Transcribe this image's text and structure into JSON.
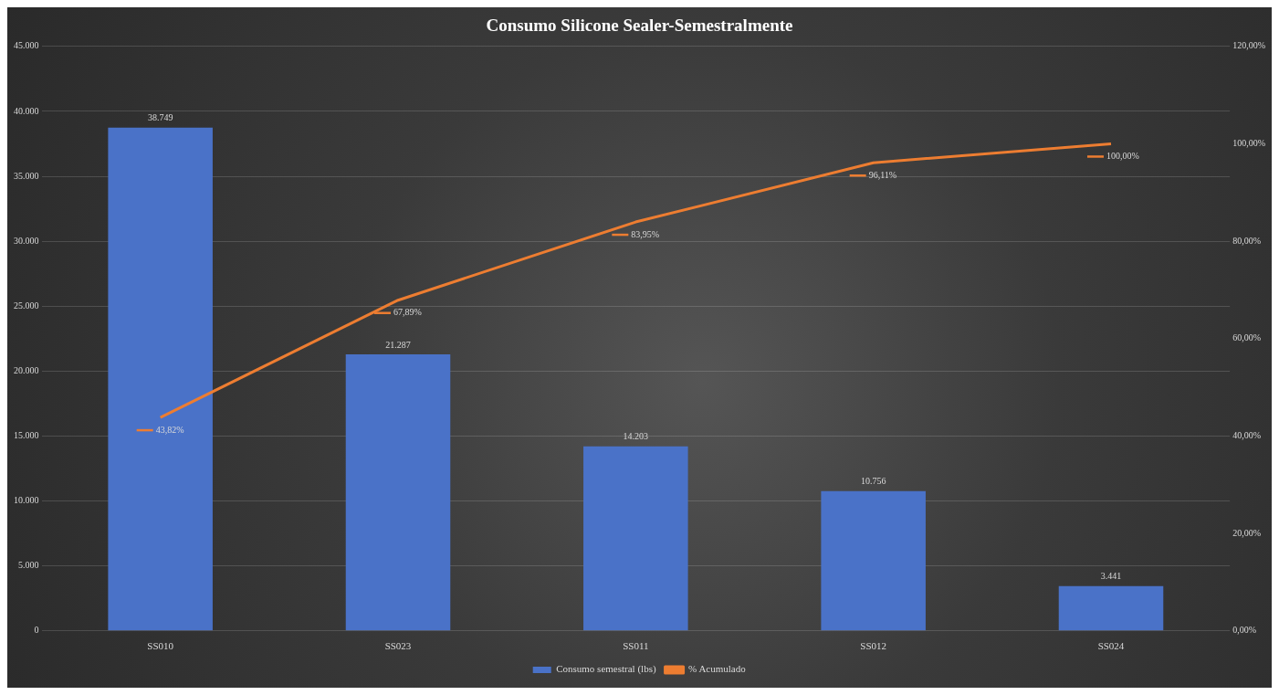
{
  "chart_data": {
    "type": "bar",
    "title": "Consumo Silicone Sealer-Semestralmente",
    "categories": [
      "SS010",
      "SS023",
      "SS011",
      "SS012",
      "SS024"
    ],
    "series": [
      {
        "name": "Consumo semestral (lbs)",
        "color": "#4a72c8",
        "values": [
          38749,
          21287,
          14203,
          10756,
          3441
        ],
        "value_labels": [
          "38.749",
          "21.287",
          "14.203",
          "10.756",
          "3.441"
        ]
      },
      {
        "name": "% Acumulado",
        "type": "line",
        "axis": "y2",
        "color": "#ed7d31",
        "values": [
          43.82,
          67.89,
          83.95,
          96.11,
          100
        ],
        "value_labels": [
          "43,82%",
          "67,89%",
          "83,95%",
          "96,11%",
          "100,00%"
        ]
      }
    ],
    "ylim": [
      0,
      45000
    ],
    "yticks": [
      {
        "value": 0,
        "label": "0"
      },
      {
        "value": 5000,
        "label": "5.000"
      },
      {
        "value": 10000,
        "label": "10.000"
      },
      {
        "value": 15000,
        "label": "15.000"
      },
      {
        "value": 20000,
        "label": "20.000"
      },
      {
        "value": 25000,
        "label": "25.000"
      },
      {
        "value": 30000,
        "label": "30.000"
      },
      {
        "value": 35000,
        "label": "35.000"
      },
      {
        "value": 40000,
        "label": "40.000"
      },
      {
        "value": 45000,
        "label": "45.000"
      }
    ],
    "y2lim": [
      0,
      120
    ],
    "y2ticks": [
      {
        "value": 0,
        "label": "0,00%"
      },
      {
        "value": 20,
        "label": "20,00%"
      },
      {
        "value": 40,
        "label": "40,00%"
      },
      {
        "value": 60,
        "label": "60,00%"
      },
      {
        "value": 80,
        "label": "80,00%"
      },
      {
        "value": 100,
        "label": "100,00%"
      },
      {
        "value": 120,
        "label": "120,00%"
      }
    ],
    "grid": "y",
    "legend": "bottom",
    "marker": "none"
  }
}
